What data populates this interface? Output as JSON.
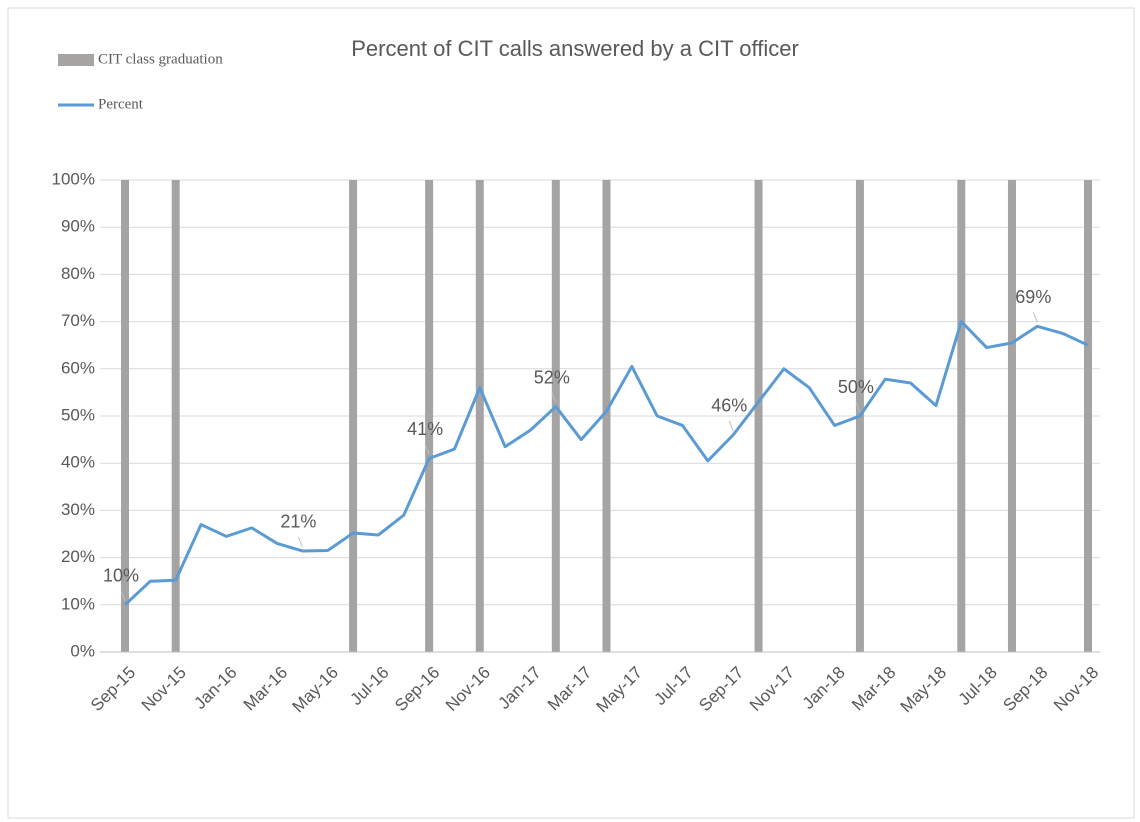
{
  "chart_data": {
    "type": "bar+line",
    "title": "Percent of CIT calls answered by a CIT officer",
    "categories": [
      "Sep-15",
      null,
      "Nov-15",
      null,
      "Jan-16",
      null,
      "Mar-16",
      null,
      "May-16",
      null,
      "Jul-16",
      null,
      "Sep-16",
      null,
      "Nov-16",
      null,
      "Jan-17",
      null,
      "Mar-17",
      null,
      "May-17",
      null,
      "Jul-17",
      null,
      "Sep-17",
      null,
      "Nov-17",
      null,
      "Jan-18",
      null,
      "Mar-18",
      null,
      "May-18",
      null,
      "Jul-18",
      null,
      "Sep-18",
      null,
      "Nov-18"
    ],
    "series": [
      {
        "name": "CIT class graduation",
        "type": "bar",
        "color": "#a6a3a3",
        "values": [
          100,
          null,
          100,
          null,
          null,
          null,
          null,
          null,
          null,
          100,
          null,
          null,
          100,
          null,
          100,
          null,
          null,
          100,
          null,
          100,
          null,
          null,
          null,
          null,
          null,
          100,
          null,
          null,
          null,
          100,
          null,
          null,
          null,
          100,
          null,
          100,
          null,
          null,
          100
        ]
      },
      {
        "name": "Percent",
        "type": "line",
        "color": "#5b9bd5",
        "values": [
          10,
          15,
          15.2,
          27,
          24.5,
          26.3,
          23,
          21.4,
          21.5,
          25.2,
          24.8,
          29,
          41,
          43,
          56,
          43.5,
          47,
          52,
          45,
          51,
          60.5,
          50,
          48,
          40.5,
          46,
          53,
          60,
          56,
          48,
          50,
          57.8,
          57,
          52.2,
          70,
          64.5,
          65.5,
          69,
          67.5,
          65
        ],
        "value_labels": [
          "10%",
          null,
          null,
          null,
          null,
          null,
          null,
          "21%",
          null,
          null,
          null,
          null,
          "41%",
          null,
          null,
          null,
          null,
          "52%",
          null,
          null,
          null,
          null,
          null,
          null,
          "46%",
          null,
          null,
          null,
          null,
          "50%",
          null,
          null,
          null,
          null,
          null,
          null,
          "69%",
          null,
          null
        ]
      }
    ],
    "ylim": [
      0,
      100
    ],
    "yticks": [
      {
        "value": 0,
        "label": "0%"
      },
      {
        "value": 10,
        "label": "10%"
      },
      {
        "value": 20,
        "label": "20%"
      },
      {
        "value": 30,
        "label": "30%"
      },
      {
        "value": 40,
        "label": "40%"
      },
      {
        "value": 50,
        "label": "50%"
      },
      {
        "value": 60,
        "label": "60%"
      },
      {
        "value": 70,
        "label": "70%"
      },
      {
        "value": 80,
        "label": "80%"
      },
      {
        "value": 90,
        "label": "90%"
      },
      {
        "value": 100,
        "label": "100%"
      }
    ],
    "grid": true,
    "legend": "top-left"
  }
}
